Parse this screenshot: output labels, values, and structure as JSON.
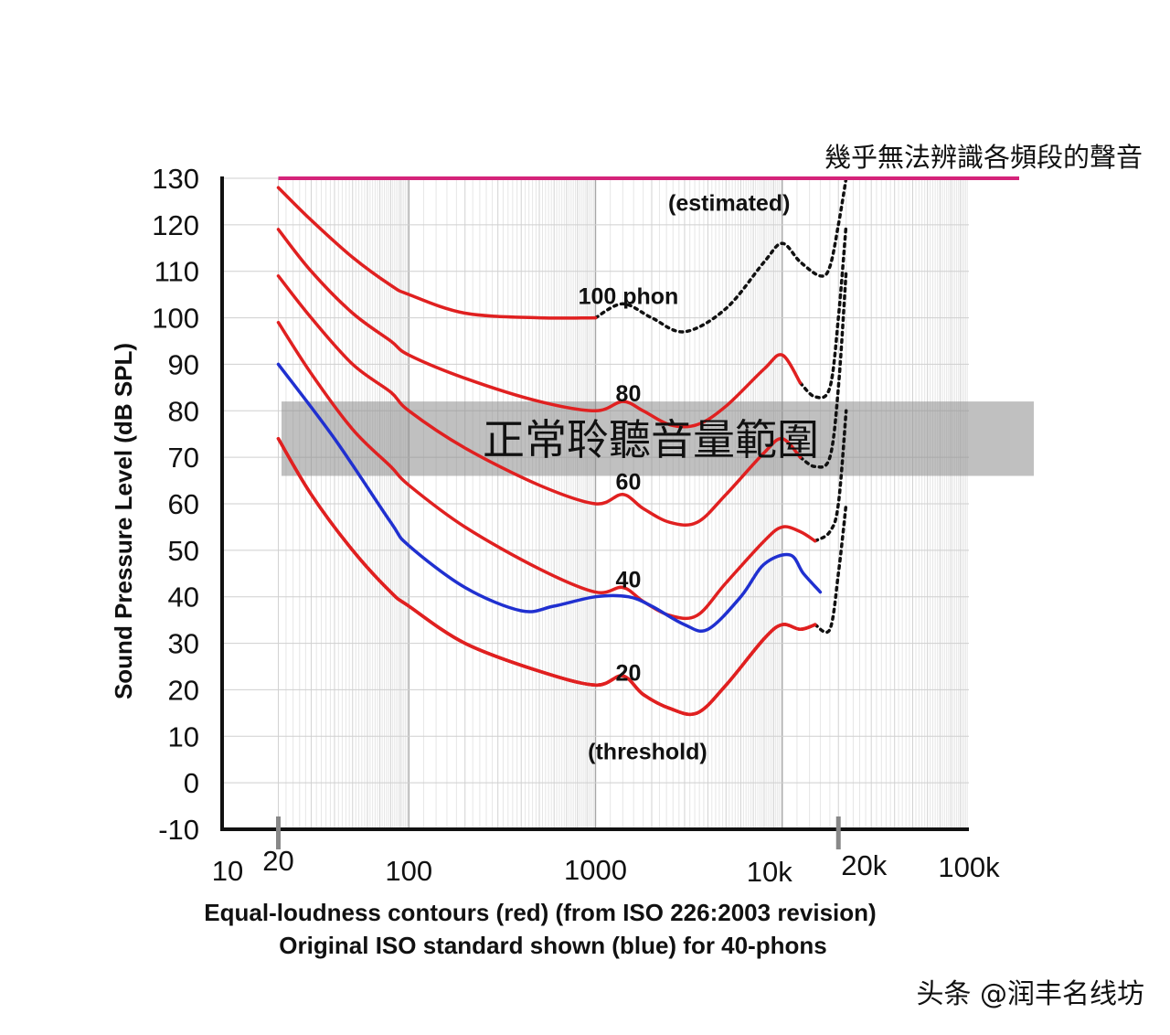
{
  "chart_data": {
    "type": "line",
    "title": "",
    "ylabel": "Sound Pressure Level (dB SPL)",
    "caption_line1": "Equal-loudness contours (red) (from ISO 226:2003 revision)",
    "caption_line2": "Original ISO standard shown (blue) for 40-phons",
    "x_scale": "log",
    "xlim": [
      10,
      100000
    ],
    "ylim": [
      -10,
      130
    ],
    "y_ticks": [
      "130",
      "120",
      "110",
      "100",
      "90",
      "80",
      "70",
      "60",
      "50",
      "40",
      "30",
      "20",
      "10",
      "0",
      "-10"
    ],
    "x_ticks": [
      {
        "value": 10,
        "label": "10"
      },
      {
        "value": 20,
        "label": "20"
      },
      {
        "value": 100,
        "label": "100"
      },
      {
        "value": 1000,
        "label": "1000"
      },
      {
        "value": 10000,
        "label": "10k"
      },
      {
        "value": 20000,
        "label": "20k"
      },
      {
        "value": 100000,
        "label": "100k"
      }
    ],
    "limit_line": {
      "y": 130,
      "x_start": 20,
      "x_end": 100000,
      "color": "#d4237a",
      "label": "幾乎無法辨識各頻段的聲音"
    },
    "band": {
      "y_low": 66,
      "y_high": 82,
      "label": "正常聆聽音量範圍"
    },
    "series": [
      {
        "color": "#e02020",
        "x": [
          20,
          30,
          50,
          80,
          100,
          200,
          500,
          1000
        ],
        "y": [
          128,
          121,
          113,
          107,
          105,
          101,
          100,
          100
        ],
        "dashed_x": [
          1000,
          1400,
          2000,
          3000,
          5000,
          8000,
          10000,
          12500,
          16000,
          18000,
          20000,
          22000
        ],
        "dashed_y": [
          100,
          103,
          100,
          97,
          102,
          112,
          116,
          112,
          109,
          111,
          120,
          130
        ]
      },
      {
        "color": "#e02020",
        "x": [
          20,
          30,
          50,
          80,
          100,
          200,
          500,
          1000,
          1400,
          1800,
          2500,
          3500,
          5000,
          8000,
          10000,
          12500
        ],
        "y": [
          119,
          110,
          101,
          95,
          92,
          87,
          82,
          80,
          82,
          80,
          77,
          77,
          81,
          89,
          92,
          86
        ],
        "dashed_x": [
          12500,
          15000,
          18000,
          20000,
          22000
        ],
        "dashed_y": [
          86,
          83,
          85,
          100,
          120
        ]
      },
      {
        "color": "#e02020",
        "x": [
          20,
          30,
          50,
          80,
          100,
          200,
          500,
          1000,
          1400,
          1800,
          2500,
          3500,
          5000,
          8000,
          10000,
          12500
        ],
        "y": [
          109,
          100,
          90,
          84,
          80,
          72,
          64,
          60,
          62,
          59,
          56,
          56,
          62,
          71,
          74,
          70
        ],
        "dashed_x": [
          12500,
          15000,
          18000,
          20000,
          22000
        ],
        "dashed_y": [
          70,
          68,
          70,
          85,
          110
        ]
      },
      {
        "color": "#e02020",
        "x": [
          20,
          30,
          50,
          80,
          100,
          200,
          500,
          1000,
          1400,
          1800,
          2500,
          3500,
          5000,
          8000,
          10000,
          12500,
          15000
        ],
        "y": [
          99,
          88,
          76,
          68,
          64,
          55,
          46,
          41,
          42,
          39,
          36,
          36,
          43,
          52,
          55,
          54,
          52
        ],
        "dashed_x": [
          15000,
          18000,
          20000,
          22000
        ],
        "dashed_y": [
          52,
          54,
          60,
          80
        ]
      },
      {
        "color": "#2030d0",
        "x": [
          20,
          40,
          80,
          100,
          200,
          400,
          600,
          1000,
          1500,
          2000,
          3000,
          4000,
          6000,
          8000,
          11000,
          13000,
          16000
        ],
        "y": [
          90,
          74,
          56,
          51,
          42,
          37,
          38,
          40,
          40,
          38,
          34,
          33,
          40,
          47,
          49,
          45,
          41
        ],
        "dashed_x": [],
        "dashed_y": []
      },
      {
        "color": "#e02020",
        "x": [
          20,
          30,
          50,
          80,
          100,
          200,
          500,
          1000,
          1400,
          1800,
          2500,
          3500,
          5000,
          8000,
          10000,
          12500,
          15000
        ],
        "y": [
          74,
          62,
          50,
          41,
          38,
          30,
          24,
          21,
          23,
          19,
          16,
          15,
          21,
          31,
          34,
          33,
          34
        ],
        "dashed_x": [
          15000,
          18000,
          20000,
          22000
        ],
        "dashed_y": [
          34,
          33,
          45,
          60
        ]
      },
      {
        "color": "#e02020",
        "x": [
          20,
          30,
          50,
          80,
          100,
          200,
          500,
          1000,
          1400,
          1800,
          2500,
          3500,
          5000,
          8000,
          10000,
          12500,
          15000
        ],
        "y": [
          74,
          62,
          50,
          41,
          38,
          30,
          24,
          21,
          23,
          19,
          16,
          15,
          21,
          31,
          34,
          33,
          34
        ],
        "dashed_x": [],
        "dashed_y": []
      },
      {
        "color": "#e02020",
        "x": [
          20,
          30,
          50,
          80,
          100,
          200,
          500,
          1000,
          1400,
          1800,
          2500,
          3500,
          5000,
          8000,
          10000,
          12500,
          15000
        ],
        "y": [
          74,
          62,
          50,
          41,
          38,
          30,
          24,
          21,
          23,
          19,
          16,
          15,
          21,
          31,
          34,
          33,
          34
        ],
        "dashed_x": [],
        "dashed_y": []
      }
    ],
    "annotations": [
      {
        "text": "(estimated)",
        "x": 5200,
        "y": 123
      },
      {
        "text": "100 phon",
        "x": 1500,
        "y": 103
      },
      {
        "text": "80",
        "x": 1500,
        "y": 82
      },
      {
        "text": "60",
        "x": 1500,
        "y": 63
      },
      {
        "text": "40",
        "x": 1500,
        "y": 42
      },
      {
        "text": "20",
        "x": 1500,
        "y": 22
      },
      {
        "text": "(threshold)",
        "x": 1900,
        "y": 5
      }
    ]
  },
  "watermark": "头条 @润丰名线坊"
}
